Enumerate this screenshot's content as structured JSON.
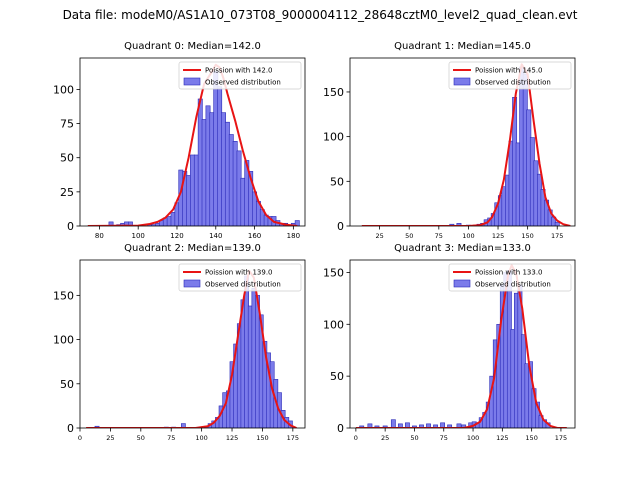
{
  "suptitle": "Data file: modeM0/AS1A10_073T08_9000004112_28648cztM0_level2_quad_clean.evt",
  "chart_data": [
    {
      "type": "bar",
      "title": "Quadrant 0: Median=142.0",
      "xlim": [
        70,
        186
      ],
      "ylim": [
        0,
        123
      ],
      "xticks": [
        80,
        100,
        120,
        140,
        160,
        180
      ],
      "yticks": [
        0,
        25,
        50,
        75,
        100
      ],
      "bin_width": 2.2,
      "bars": [
        [
          86,
          3
        ],
        [
          90,
          1
        ],
        [
          92,
          2
        ],
        [
          94,
          3
        ],
        [
          96,
          3
        ],
        [
          106,
          1
        ],
        [
          108,
          1
        ],
        [
          110,
          2
        ],
        [
          112,
          4
        ],
        [
          114,
          6
        ],
        [
          116,
          7
        ],
        [
          118,
          10
        ],
        [
          120,
          17
        ],
        [
          122,
          41
        ],
        [
          124,
          40
        ],
        [
          126,
          37
        ],
        [
          128,
          52
        ],
        [
          130,
          52
        ],
        [
          132,
          93
        ],
        [
          134,
          78
        ],
        [
          136,
          88
        ],
        [
          138,
          83
        ],
        [
          140,
          113
        ],
        [
          142,
          102
        ],
        [
          144,
          83
        ],
        [
          146,
          76
        ],
        [
          148,
          67
        ],
        [
          150,
          62
        ],
        [
          152,
          55
        ],
        [
          154,
          35
        ],
        [
          156,
          48
        ],
        [
          158,
          40
        ],
        [
          160,
          25
        ],
        [
          162,
          18
        ],
        [
          164,
          12
        ],
        [
          166,
          8
        ],
        [
          168,
          7
        ],
        [
          170,
          7
        ],
        [
          172,
          4
        ],
        [
          174,
          2
        ],
        [
          176,
          2
        ],
        [
          180,
          2
        ],
        [
          182,
          4
        ]
      ],
      "poisson_curve": [
        [
          74,
          0
        ],
        [
          100,
          0.3
        ],
        [
          106,
          1.5
        ],
        [
          110,
          3
        ],
        [
          114,
          6
        ],
        [
          118,
          12
        ],
        [
          122,
          25
        ],
        [
          126,
          50
        ],
        [
          130,
          80
        ],
        [
          134,
          104
        ],
        [
          138,
          113
        ],
        [
          140,
          118
        ],
        [
          142,
          116
        ],
        [
          144,
          108
        ],
        [
          146,
          97
        ],
        [
          150,
          77
        ],
        [
          154,
          55
        ],
        [
          158,
          35
        ],
        [
          162,
          18
        ],
        [
          166,
          8
        ],
        [
          170,
          3
        ],
        [
          176,
          1
        ],
        [
          182,
          0
        ]
      ],
      "legend": [
        "Poission with 142.0",
        "Observed distribution"
      ]
    },
    {
      "type": "bar",
      "title": "Quadrant 1: Median=145.0",
      "xlim": [
        0,
        190
      ],
      "ylim": [
        0,
        188
      ],
      "xticks": [
        25,
        50,
        75,
        100,
        125,
        150,
        175
      ],
      "yticks": [
        0,
        50,
        100,
        150
      ],
      "bin_width": 3.6,
      "bars": [
        [
          86,
          2
        ],
        [
          92,
          3
        ],
        [
          100,
          1
        ],
        [
          106,
          1
        ],
        [
          109,
          2
        ],
        [
          112,
          3
        ],
        [
          115,
          7
        ],
        [
          118,
          9
        ],
        [
          121,
          14
        ],
        [
          124,
          26
        ],
        [
          127,
          34
        ],
        [
          130,
          44
        ],
        [
          133,
          57
        ],
        [
          136,
          95
        ],
        [
          139,
          144
        ],
        [
          142,
          93
        ],
        [
          145,
          178
        ],
        [
          148,
          170
        ],
        [
          151,
          130
        ],
        [
          154,
          99
        ],
        [
          157,
          73
        ],
        [
          160,
          58
        ],
        [
          163,
          41
        ],
        [
          166,
          29
        ],
        [
          169,
          18
        ],
        [
          172,
          10
        ],
        [
          175,
          4
        ]
      ],
      "poisson_curve": [
        [
          10,
          0
        ],
        [
          100,
          0
        ],
        [
          110,
          1
        ],
        [
          116,
          4
        ],
        [
          120,
          10
        ],
        [
          125,
          25
        ],
        [
          130,
          52
        ],
        [
          135,
          96
        ],
        [
          140,
          148
        ],
        [
          145,
          181
        ],
        [
          150,
          170
        ],
        [
          155,
          118
        ],
        [
          160,
          70
        ],
        [
          165,
          32
        ],
        [
          170,
          14
        ],
        [
          175,
          6
        ],
        [
          180,
          2
        ],
        [
          186,
          0
        ]
      ],
      "legend": [
        "Poission with 145.0",
        "Observed distribution"
      ]
    },
    {
      "type": "bar",
      "title": "Quadrant 2: Median=139.0",
      "xlim": [
        0,
        185
      ],
      "ylim": [
        0,
        190
      ],
      "xticks": [
        0,
        25,
        50,
        75,
        100,
        125,
        150,
        175
      ],
      "yticks": [
        0,
        50,
        100,
        150
      ],
      "bin_width": 3.4,
      "bars": [
        [
          14,
          2
        ],
        [
          71,
          1
        ],
        [
          77,
          1
        ],
        [
          85,
          5
        ],
        [
          104,
          2
        ],
        [
          107,
          5
        ],
        [
          110,
          8
        ],
        [
          113,
          12
        ],
        [
          116,
          25
        ],
        [
          119,
          40
        ],
        [
          122,
          42
        ],
        [
          125,
          75
        ],
        [
          128,
          95
        ],
        [
          131,
          118
        ],
        [
          134,
          145
        ],
        [
          137,
          172
        ],
        [
          140,
          138
        ],
        [
          143,
          158
        ],
        [
          146,
          150
        ],
        [
          149,
          128
        ],
        [
          152,
          98
        ],
        [
          155,
          85
        ],
        [
          158,
          75
        ],
        [
          161,
          55
        ],
        [
          164,
          40
        ],
        [
          167,
          20
        ],
        [
          170,
          12
        ],
        [
          173,
          8
        ]
      ],
      "poisson_curve": [
        [
          5,
          0
        ],
        [
          95,
          0
        ],
        [
          105,
          2
        ],
        [
          110,
          6
        ],
        [
          115,
          14
        ],
        [
          120,
          28
        ],
        [
          125,
          60
        ],
        [
          130,
          105
        ],
        [
          135,
          150
        ],
        [
          139,
          178
        ],
        [
          143,
          170
        ],
        [
          148,
          128
        ],
        [
          153,
          80
        ],
        [
          158,
          44
        ],
        [
          163,
          22
        ],
        [
          168,
          9
        ],
        [
          173,
          3
        ],
        [
          178,
          0
        ]
      ],
      "legend": [
        "Poission with 139.0",
        "Observed distribution"
      ]
    },
    {
      "type": "bar",
      "title": "Quadrant 3: Median=133.0",
      "xlim": [
        -5,
        187
      ],
      "ylim": [
        0,
        162
      ],
      "xticks": [
        0,
        25,
        50,
        75,
        100,
        125,
        150,
        175
      ],
      "yticks": [
        0,
        50,
        100,
        150
      ],
      "bin_width": 3.6,
      "bars": [
        [
          5,
          2
        ],
        [
          12,
          4
        ],
        [
          18,
          2
        ],
        [
          25,
          2
        ],
        [
          32,
          8
        ],
        [
          38,
          4
        ],
        [
          44,
          5
        ],
        [
          50,
          2
        ],
        [
          56,
          3
        ],
        [
          62,
          4
        ],
        [
          68,
          3
        ],
        [
          74,
          5
        ],
        [
          80,
          3
        ],
        [
          88,
          4
        ],
        [
          92,
          3
        ],
        [
          98,
          5
        ],
        [
          101,
          6
        ],
        [
          104,
          5
        ],
        [
          107,
          10
        ],
        [
          110,
          15
        ],
        [
          113,
          25
        ],
        [
          116,
          50
        ],
        [
          119,
          85
        ],
        [
          122,
          100
        ],
        [
          125,
          138
        ],
        [
          128,
          150
        ],
        [
          131,
          152
        ],
        [
          134,
          95
        ],
        [
          137,
          130
        ],
        [
          140,
          138
        ],
        [
          143,
          90
        ],
        [
          146,
          62
        ],
        [
          149,
          64
        ],
        [
          152,
          38
        ],
        [
          155,
          25
        ],
        [
          158,
          12
        ],
        [
          161,
          8
        ],
        [
          164,
          5
        ]
      ],
      "poisson_curve": [
        [
          0,
          0
        ],
        [
          92,
          0
        ],
        [
          100,
          2
        ],
        [
          106,
          6
        ],
        [
          112,
          18
        ],
        [
          118,
          48
        ],
        [
          124,
          104
        ],
        [
          130,
          148
        ],
        [
          133,
          157
        ],
        [
          137,
          148
        ],
        [
          142,
          115
        ],
        [
          148,
          60
        ],
        [
          154,
          24
        ],
        [
          160,
          8
        ],
        [
          166,
          2
        ],
        [
          172,
          0
        ],
        [
          180,
          0
        ]
      ],
      "legend": [
        "Poission with 133.0",
        "Observed distribution"
      ]
    }
  ],
  "colors": {
    "bar_fill": "#7b7bea",
    "bar_edge": "#2a2ab8",
    "curve": "#e81414",
    "axis": "#000000"
  }
}
